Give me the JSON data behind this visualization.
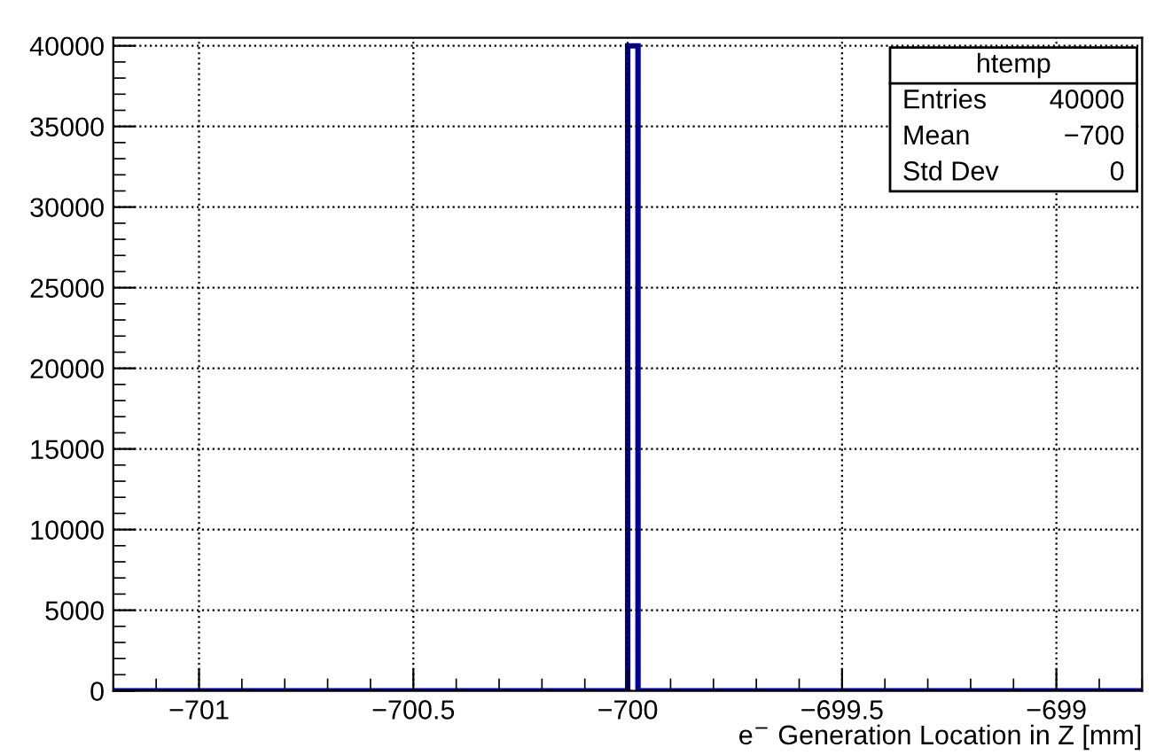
{
  "chart_data": {
    "type": "histogram",
    "xlabel": "e$^{−}$ Generation Location in Z [mm]",
    "bins": [
      -701.2,
      -700,
      -699.976,
      -698.8
    ],
    "values": [
      0,
      40000,
      0
    ],
    "color": "#000099",
    "xlim": [
      -701.2,
      -698.8
    ],
    "xticks": [
      {
        "value": -701,
        "label": "−701"
      },
      {
        "value": -700.5,
        "label": "−700.5"
      },
      {
        "value": -700,
        "label": "−700"
      },
      {
        "value": -699.5,
        "label": "−699.5"
      },
      {
        "value": -699,
        "label": "−699"
      }
    ],
    "ylim": [
      0,
      40500
    ],
    "yticks": [
      0,
      5000,
      10000,
      15000,
      20000,
      25000,
      30000,
      35000,
      40000
    ],
    "grid": true,
    "line_style": "dotted",
    "annotations": [
      "htemp",
      "Entries",
      "40000",
      "Mean",
      "−700",
      "Std Dev",
      "0"
    ]
  }
}
